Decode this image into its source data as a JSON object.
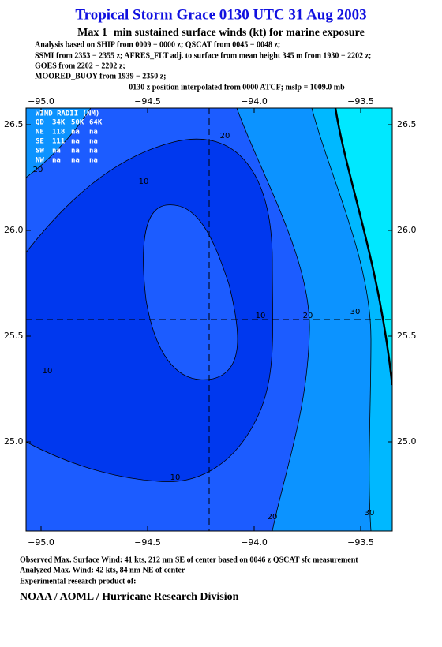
{
  "header": {
    "title": "Tropical Storm Grace 0130 UTC 31 Aug 2003",
    "subtitle": "Max 1−min sustained surface winds (kt) for marine exposure",
    "analysis": [
      "Analysis based on  SHIP from 0009 − 0000 z;  QSCAT from 0045 − 0048 z;",
      "SSMI from 2353 − 2355 z;  AFRES_FLT adj. to surface from mean height 345 m from 1930 − 2202 z;",
      "GOES from 2202 − 2202 z;",
      "MOORED_BUOY from 1939 − 2350 z;"
    ],
    "position": "0130 z position interpolated from 0000 ATCF; mslp = 1009.0 mb"
  },
  "map": {
    "lon_ticks": [
      "−95.0",
      "−94.5",
      "−94.0",
      "−93.5"
    ],
    "lat_ticks": [
      "26.5",
      "26.0",
      "25.5",
      "25.0"
    ],
    "wind_radii": {
      "title": "WIND RADII (NM)",
      "rows": [
        [
          "QD",
          "34K",
          "50K",
          "64K"
        ],
        [
          "NE",
          "118",
          "na",
          "na"
        ],
        [
          "SE",
          "111",
          "na",
          "na"
        ],
        [
          "SW",
          "na",
          "na",
          "na"
        ],
        [
          "NW",
          "na",
          "na",
          "na"
        ]
      ]
    },
    "contour_labels": [
      "20",
      "20",
      "10",
      "10",
      "10",
      "10",
      "20",
      "30",
      "20",
      "30"
    ]
  },
  "footer": {
    "lines": [
      "Observed Max. Surface Wind: 41 kts, 212 nm SE of center based on 0046 z QSCAT sfc measurement",
      "Analyzed Max. Wind: 42 kts, 84 nm NE of center",
      "Experimental research product of:"
    ],
    "organization": "NOAA / AOML / Hurricane Research Division"
  }
}
